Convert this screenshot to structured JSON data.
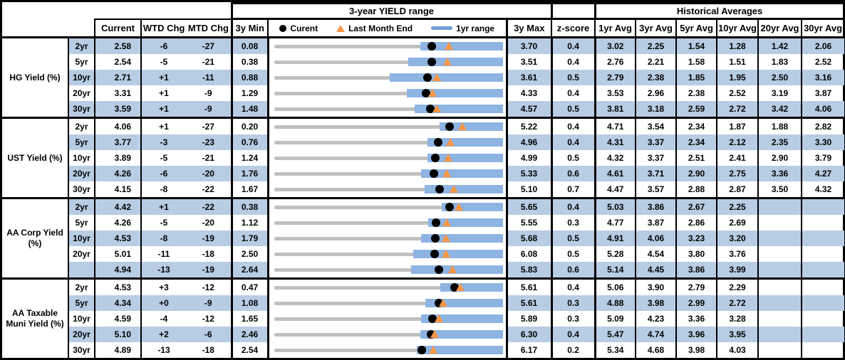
{
  "colors": {
    "row_shade": "#B8CCE4",
    "range_bar": "#8EB4E2",
    "legend_bar": "#6D9ED8",
    "track_gray": "#C0C0C0",
    "marker_dot": "#000000",
    "marker_triangle": "#F79646",
    "border": "#000000"
  },
  "chart_data": {
    "type": "table",
    "embedded_row_chart_type": "range-bullet",
    "title": "3-year YIELD range",
    "hist_title": "Historical Averages",
    "columns": {
      "current": "Current",
      "wtd": "WTD Chg",
      "mtd": "MTD Chg",
      "min": "3y Min",
      "max": "3y Max",
      "z": "z-score",
      "avgs": [
        "1yr Avg",
        "3yr Avg",
        "5yr Avg",
        "10yr Avg",
        "20yr Avg",
        "30yr Avg"
      ]
    },
    "legend": {
      "current": "Curent",
      "last_month_end": "Last Month End",
      "range": "1yr range"
    },
    "groups": [
      {
        "label": "HG Yield (%)",
        "rows": [
          {
            "tenor": "2yr",
            "current": "2.58",
            "wtd_chg": "-6",
            "mtd_chg": "-27",
            "min_3y": "0.08",
            "max_3y": "3.70",
            "z_score": "0.4",
            "avgs": [
              "3.02",
              "2.25",
              "1.54",
              "1.28",
              "1.42",
              "2.06"
            ],
            "range_1yr": [
              2.4,
              3.7
            ],
            "last_month_end": 2.85
          },
          {
            "tenor": "5yr",
            "current": "2.54",
            "wtd_chg": "-5",
            "mtd_chg": "-21",
            "min_3y": "0.38",
            "max_3y": "3.51",
            "z_score": "0.4",
            "avgs": [
              "2.76",
              "2.21",
              "1.58",
              "1.51",
              "1.83",
              "2.52"
            ],
            "range_1yr": [
              2.22,
              3.51
            ],
            "last_month_end": 2.75
          },
          {
            "tenor": "10yr",
            "current": "2.71",
            "wtd_chg": "+1",
            "mtd_chg": "-11",
            "min_3y": "0.88",
            "max_3y": "3.61",
            "z_score": "0.5",
            "avgs": [
              "2.79",
              "2.38",
              "1.85",
              "1.95",
              "2.50",
              "3.16"
            ],
            "range_1yr": [
              2.26,
              3.61
            ],
            "last_month_end": 2.82
          },
          {
            "tenor": "20yr",
            "current": "3.31",
            "wtd_chg": "+1",
            "mtd_chg": "-9",
            "min_3y": "1.29",
            "max_3y": "4.33",
            "z_score": "0.4",
            "avgs": [
              "3.53",
              "2.96",
              "2.38",
              "2.52",
              "3.19",
              "3.87"
            ],
            "range_1yr": [
              3.06,
              4.33
            ],
            "last_month_end": 3.4
          },
          {
            "tenor": "30yr",
            "current": "3.59",
            "wtd_chg": "+1",
            "mtd_chg": "-9",
            "min_3y": "1.48",
            "max_3y": "4.57",
            "z_score": "0.5",
            "avgs": [
              "3.81",
              "3.18",
              "2.59",
              "2.72",
              "3.42",
              "4.06"
            ],
            "range_1yr": [
              3.38,
              4.57
            ],
            "last_month_end": 3.68
          }
        ]
      },
      {
        "label": "UST Yield (%)",
        "rows": [
          {
            "tenor": "2yr",
            "current": "4.06",
            "wtd_chg": "+1",
            "mtd_chg": "-27",
            "min_3y": "0.20",
            "max_3y": "5.22",
            "z_score": "0.4",
            "avgs": [
              "4.71",
              "3.54",
              "2.34",
              "1.87",
              "1.88",
              "2.82"
            ],
            "range_1yr": [
              3.83,
              5.22
            ],
            "last_month_end": 4.33
          },
          {
            "tenor": "5yr",
            "current": "3.77",
            "wtd_chg": "-3",
            "mtd_chg": "-23",
            "min_3y": "0.76",
            "max_3y": "4.96",
            "z_score": "0.4",
            "avgs": [
              "4.31",
              "3.37",
              "2.34",
              "2.12",
              "2.35",
              "3.30"
            ],
            "range_1yr": [
              3.58,
              4.96
            ],
            "last_month_end": 4.0
          },
          {
            "tenor": "10yr",
            "current": "3.89",
            "wtd_chg": "-5",
            "mtd_chg": "-21",
            "min_3y": "1.24",
            "max_3y": "4.99",
            "z_score": "0.5",
            "avgs": [
              "4.32",
              "3.37",
              "2.51",
              "2.41",
              "2.90",
              "3.79"
            ],
            "range_1yr": [
              3.76,
              4.99
            ],
            "last_month_end": 4.1
          },
          {
            "tenor": "20yr",
            "current": "4.26",
            "wtd_chg": "-6",
            "mtd_chg": "-20",
            "min_3y": "1.76",
            "max_3y": "5.33",
            "z_score": "0.6",
            "avgs": [
              "4.61",
              "3.71",
              "2.90",
              "2.75",
              "3.36",
              "4.27"
            ],
            "range_1yr": [
              4.06,
              5.33
            ],
            "last_month_end": 4.46
          },
          {
            "tenor": "30yr",
            "current": "4.15",
            "wtd_chg": "-8",
            "mtd_chg": "-22",
            "min_3y": "1.67",
            "max_3y": "5.10",
            "z_score": "0.7",
            "avgs": [
              "4.47",
              "3.57",
              "2.88",
              "2.87",
              "3.50",
              "4.32"
            ],
            "range_1yr": [
              3.93,
              5.1
            ],
            "last_month_end": 4.37
          }
        ]
      },
      {
        "label": "AA Corp Yield (%)",
        "rows": [
          {
            "tenor": "2yr",
            "current": "4.42",
            "wtd_chg": "+1",
            "mtd_chg": "-22",
            "min_3y": "0.38",
            "max_3y": "5.65",
            "z_score": "0.4",
            "avgs": [
              "5.03",
              "3.86",
              "2.67",
              "2.25",
              "",
              ""
            ],
            "range_1yr": [
              4.24,
              5.65
            ],
            "last_month_end": 4.64
          },
          {
            "tenor": "5yr",
            "current": "4.26",
            "wtd_chg": "-5",
            "mtd_chg": "-20",
            "min_3y": "1.12",
            "max_3y": "5.55",
            "z_score": "0.3",
            "avgs": [
              "4.77",
              "3.87",
              "2.86",
              "2.69",
              "",
              ""
            ],
            "range_1yr": [
              4.11,
              5.55
            ],
            "last_month_end": 4.46
          },
          {
            "tenor": "10yr",
            "current": "4.53",
            "wtd_chg": "-8",
            "mtd_chg": "-19",
            "min_3y": "1.79",
            "max_3y": "5.68",
            "z_score": "0.5",
            "avgs": [
              "4.91",
              "4.06",
              "3.23",
              "3.20",
              "",
              ""
            ],
            "range_1yr": [
              4.29,
              5.68
            ],
            "last_month_end": 4.72
          },
          {
            "tenor": "20yr",
            "current": "5.01",
            "wtd_chg": "-11",
            "mtd_chg": "-18",
            "min_3y": "2.50",
            "max_3y": "6.08",
            "z_score": "0.5",
            "avgs": [
              "5.28",
              "4.54",
              "3.80",
              "3.76",
              "",
              ""
            ],
            "range_1yr": [
              4.68,
              6.08
            ],
            "last_month_end": 5.19
          },
          {
            "tenor": "",
            "current": "4.94",
            "wtd_chg": "-13",
            "mtd_chg": "-19",
            "min_3y": "2.64",
            "max_3y": "5.83",
            "z_score": "0.6",
            "avgs": [
              "5.14",
              "4.45",
              "3.86",
              "3.99",
              "",
              ""
            ],
            "range_1yr": [
              4.55,
              5.83
            ],
            "last_month_end": 5.13
          }
        ]
      },
      {
        "label": "AA Taxable Muni Yield (%)",
        "rows": [
          {
            "tenor": "2yr",
            "current": "4.53",
            "wtd_chg": "+3",
            "mtd_chg": "-12",
            "min_3y": "0.47",
            "max_3y": "5.61",
            "z_score": "0.4",
            "avgs": [
              "5.06",
              "3.90",
              "2.79",
              "2.29",
              "",
              ""
            ],
            "range_1yr": [
              4.21,
              5.61
            ],
            "last_month_end": 4.65
          },
          {
            "tenor": "5yr",
            "current": "4.34",
            "wtd_chg": "+0",
            "mtd_chg": "-9",
            "min_3y": "1.08",
            "max_3y": "5.61",
            "z_score": "0.3",
            "avgs": [
              "4.88",
              "3.98",
              "2.99",
              "2.72",
              "",
              ""
            ],
            "range_1yr": [
              4.08,
              5.61
            ],
            "last_month_end": 4.43
          },
          {
            "tenor": "10yr",
            "current": "4.59",
            "wtd_chg": "-4",
            "mtd_chg": "-12",
            "min_3y": "1.65",
            "max_3y": "5.89",
            "z_score": "0.3",
            "avgs": [
              "5.09",
              "4.23",
              "3.36",
              "3.28",
              "",
              ""
            ],
            "range_1yr": [
              4.38,
              5.89
            ],
            "last_month_end": 4.71
          },
          {
            "tenor": "20yr",
            "current": "5.10",
            "wtd_chg": "+2",
            "mtd_chg": "-6",
            "min_3y": "2.46",
            "max_3y": "6.30",
            "z_score": "0.4",
            "avgs": [
              "5.47",
              "4.74",
              "3.96",
              "3.95",
              "",
              ""
            ],
            "range_1yr": [
              4.92,
              6.3
            ],
            "last_month_end": 5.16
          },
          {
            "tenor": "30yr",
            "current": "4.89",
            "wtd_chg": "-13",
            "mtd_chg": "-18",
            "min_3y": "2.54",
            "max_3y": "6.17",
            "z_score": "0.2",
            "avgs": [
              "5.34",
              "4.68",
              "3.98",
              "4.03",
              "",
              ""
            ],
            "range_1yr": [
              4.81,
              6.17
            ],
            "last_month_end": 5.07
          }
        ]
      }
    ]
  }
}
